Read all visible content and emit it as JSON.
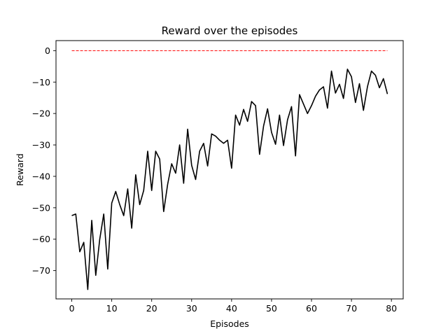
{
  "chart_data": {
    "type": "line",
    "title": "Reward over the episodes",
    "xlabel": "Episodes",
    "ylabel": "Reward",
    "xlim": [
      -3.95,
      82.95
    ],
    "ylim": [
      -79,
      3.2
    ],
    "xticks": [
      0,
      10,
      20,
      30,
      40,
      50,
      60,
      70,
      80
    ],
    "yticks": [
      0,
      -10,
      -20,
      -30,
      -40,
      -50,
      -60,
      -70
    ],
    "grid": false,
    "series": [
      {
        "color": "#000000",
        "style": "solid",
        "x": [
          0,
          1,
          2,
          3,
          4,
          5,
          6,
          7,
          8,
          9,
          10,
          11,
          12,
          13,
          14,
          15,
          16,
          17,
          18,
          19,
          20,
          21,
          22,
          23,
          24,
          25,
          26,
          27,
          28,
          29,
          30,
          31,
          32,
          33,
          34,
          35,
          36,
          37,
          38,
          39,
          40,
          41,
          42,
          43,
          44,
          45,
          46,
          47,
          48,
          49,
          50,
          51,
          52,
          53,
          54,
          55,
          56,
          57,
          58,
          59,
          60,
          61,
          62,
          63,
          64,
          65,
          66,
          67,
          68,
          69,
          70,
          71,
          72,
          73,
          74,
          75,
          76,
          77,
          78,
          79
        ],
        "values": [
          -52.5,
          -52,
          -64,
          -61,
          -76,
          -54,
          -71.5,
          -60,
          -52,
          -69.5,
          -48.5,
          -44.8,
          -49,
          -52.5,
          -44,
          -56.5,
          -39.5,
          -49,
          -44.5,
          -32,
          -44.5,
          -32,
          -34.5,
          -51.2,
          -42.5,
          -36,
          -39,
          -30,
          -42.2,
          -25,
          -36.5,
          -41,
          -32,
          -29.5,
          -36.7,
          -26.5,
          -27.2,
          -28.5,
          -29.5,
          -28.5,
          -37.4,
          -20.5,
          -23.7,
          -18.7,
          -22.5,
          -16.2,
          -17.5,
          -33,
          -24,
          -18.5,
          -26,
          -29.8,
          -20.5,
          -30.2,
          -22,
          -17.8,
          -33.5,
          -14,
          -17,
          -20,
          -17.5,
          -14.5,
          -12.5,
          -11.5,
          -18.3,
          -6.5,
          -13.5,
          -10.7,
          -15.2,
          -5.9,
          -8.3,
          -16.5,
          -10.5,
          -19,
          -11.5,
          -6.5,
          -7.8,
          -11.8,
          -8.9,
          -13.8
        ]
      },
      {
        "color": "#ff0000",
        "style": "dashed",
        "x": [
          0,
          79
        ],
        "values": [
          0,
          0
        ]
      }
    ]
  }
}
